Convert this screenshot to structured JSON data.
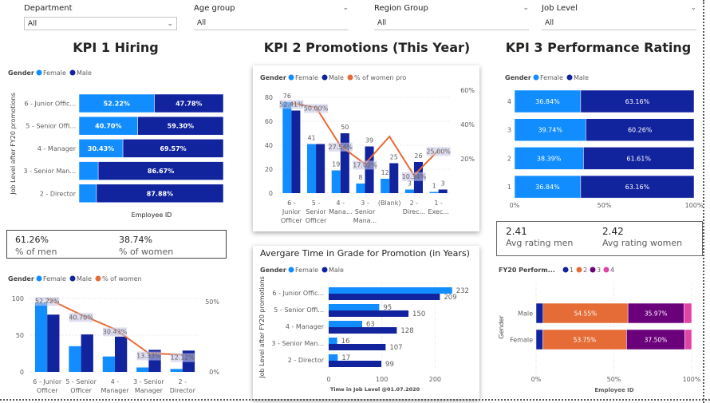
{
  "slicers": [
    {
      "label": "Department",
      "value": "All"
    },
    {
      "label": "Age group",
      "value": "All"
    },
    {
      "label": "Region Group",
      "value": "All"
    },
    {
      "label": "Job Level",
      "value": "All"
    }
  ],
  "titles": {
    "kpi1": "KPI 1 Hiring",
    "kpi2": "KPI 2 Promotions (This Year)",
    "kpi3": "KPI 3 Performance Rating"
  },
  "colors": {
    "female": "#118dff",
    "male": "#12239e",
    "line": "#e66c37",
    "r1": "#12239e",
    "r2": "#e66c37",
    "r3": "#6b007b",
    "r4": "#e044a7"
  },
  "kpi1_card": {
    "men_value": "61.26%",
    "men_label": "% of men",
    "women_value": "38.74%",
    "women_label": "% of women"
  },
  "kpi3_card": {
    "men_value": "2.41",
    "men_label": "Avg rating men",
    "women_value": "2.42",
    "women_label": "Avg rating women"
  },
  "chart_data": [
    {
      "id": "hiring",
      "type": "bar",
      "stacked": "100%",
      "orientation": "horizontal",
      "legend_title": "Gender",
      "legend": [
        "Female",
        "Male"
      ],
      "ylabel": "Job Level after FY20 promotions",
      "xlabel": "Employee ID",
      "categories": [
        "6 - Junior Offic...",
        "5 - Senior Offi...",
        "4 - Manager",
        "3 - Senior Man...",
        "2 - Director"
      ],
      "series": [
        {
          "name": "Female",
          "values": [
            52.22,
            40.7,
            30.43,
            13.33,
            12.12
          ],
          "labels": [
            "52.22%",
            "40.70%",
            "30.43%",
            null,
            null
          ]
        },
        {
          "name": "Male",
          "values": [
            47.78,
            59.3,
            69.57,
            86.67,
            87.88
          ],
          "labels": [
            "47.78%",
            "59.30%",
            "69.57%",
            "86.67%",
            "87.88%"
          ]
        }
      ]
    },
    {
      "id": "hiring_cols",
      "type": "bar",
      "legend_title": "Gender",
      "legend": [
        "Female",
        "Male",
        "% of women"
      ],
      "categories": [
        "6 - Junior|Officer",
        "5 - Senior|Officer",
        "4 -|Manager",
        "3 - Senior|Manager",
        "2 -|Director"
      ],
      "yticks": [
        0,
        50,
        100
      ],
      "ylim": [
        0,
        100
      ],
      "y2ticks": [
        "0%",
        "50%"
      ],
      "y2lim": [
        0,
        50
      ],
      "series": [
        {
          "name": "Female",
          "values": [
            94,
            35,
            21,
            6,
            4
          ]
        },
        {
          "name": "Male",
          "values": [
            78,
            51,
            48,
            30,
            29
          ]
        },
        {
          "name": "% of women",
          "type": "line",
          "values": [
            52.22,
            40.7,
            30.43,
            13.33,
            12.12
          ],
          "labels": [
            "52.22%",
            "40.70%",
            "30.43%",
            "13.33%",
            "12.12%"
          ]
        }
      ]
    },
    {
      "id": "promotions",
      "type": "bar",
      "legend_title": "Gender",
      "legend": [
        "Female",
        "Male",
        "% of women pro"
      ],
      "categories": [
        "6 -|Junior|Officer",
        "5 -|Senior|Officer",
        "4 -|Mana...",
        "3 -|Senior|Mana...",
        "(Blank)",
        "2 -|Direc...",
        "1 -|Exec..."
      ],
      "yticks": [
        0,
        20,
        40,
        60,
        80
      ],
      "ylim": [
        0,
        80
      ],
      "y2ticks": [
        "20%",
        "40%",
        "60%"
      ],
      "y2lim": [
        0,
        60
      ],
      "series": [
        {
          "name": "Female",
          "values": [
            76,
            41,
            19,
            8,
            12,
            3,
            1
          ],
          "labels": [
            "76",
            "41",
            "19",
            "8",
            "12",
            "3",
            "1"
          ]
        },
        {
          "name": "Male",
          "values": [
            69,
            41,
            50,
            39,
            25,
            26,
            3
          ],
          "labels": [
            null,
            null,
            "50",
            "39",
            "25",
            "26",
            "3"
          ]
        },
        {
          "name": "% of women pro",
          "type": "line",
          "values": [
            52.41,
            50.0,
            27.54,
            17.02,
            33,
            10.34,
            25.0
          ],
          "labels": [
            "52.41%",
            "50.00%",
            "27.54%",
            "17.02%",
            null,
            "10.34%",
            "25.00%"
          ]
        }
      ]
    },
    {
      "id": "time_in_grade",
      "type": "bar",
      "orientation": "horizontal",
      "title": "Avergare Time in Grade for Promotion (in Years)",
      "legend_title": "Gender",
      "legend": [
        "Female",
        "Male"
      ],
      "ylabel": "Job Level after FY20 promotions",
      "xlabel": "Time in Job Level @01.07.2020",
      "categories": [
        "6 - Junior Offic...",
        "5 - Senior Offi...",
        "4 - Manager",
        "3 - Senior Man...",
        "2 - Director"
      ],
      "xticks": [
        0,
        100,
        200
      ],
      "series": [
        {
          "name": "Female",
          "values": [
            232,
            95,
            63,
            16,
            17
          ]
        },
        {
          "name": "Male",
          "values": [
            209,
            150,
            128,
            107,
            99
          ]
        }
      ]
    },
    {
      "id": "rating",
      "type": "bar",
      "stacked": "100%",
      "orientation": "horizontal",
      "legend_title": "Gender",
      "legend": [
        "Female",
        "Male"
      ],
      "categories": [
        "4",
        "3",
        "2",
        "1"
      ],
      "xticks": [
        "0%",
        "50%",
        "100%"
      ],
      "series": [
        {
          "name": "Female",
          "values": [
            36.84,
            39.74,
            38.39,
            36.84
          ],
          "labels": [
            "36.84%",
            "39.74%",
            "38.39%",
            "36.84%"
          ]
        },
        {
          "name": "Male",
          "values": [
            63.16,
            60.26,
            61.61,
            63.16
          ],
          "labels": [
            "63.16%",
            "60.26%",
            "61.61%",
            "63.16%"
          ]
        }
      ]
    },
    {
      "id": "perf",
      "type": "bar",
      "stacked": "100%",
      "orientation": "horizontal",
      "legend_title": "FY20 Perform...",
      "legend": [
        "1",
        "2",
        "3",
        "4"
      ],
      "ylabel": "Gender",
      "xlabel": "Employee ID",
      "categories": [
        "Male",
        "Female"
      ],
      "xticks": [
        "0%",
        "50%",
        "100%"
      ],
      "series": [
        {
          "name": "1",
          "values": [
            4.5,
            4.4
          ],
          "labels": [
            null,
            null
          ]
        },
        {
          "name": "2",
          "values": [
            54.55,
            53.75
          ],
          "labels": [
            "54.55%",
            "53.75%"
          ]
        },
        {
          "name": "3",
          "values": [
            35.97,
            37.5
          ],
          "labels": [
            "35.97%",
            "37.50%"
          ]
        },
        {
          "name": "4",
          "values": [
            4.98,
            4.35
          ],
          "labels": [
            null,
            null
          ]
        }
      ]
    }
  ]
}
